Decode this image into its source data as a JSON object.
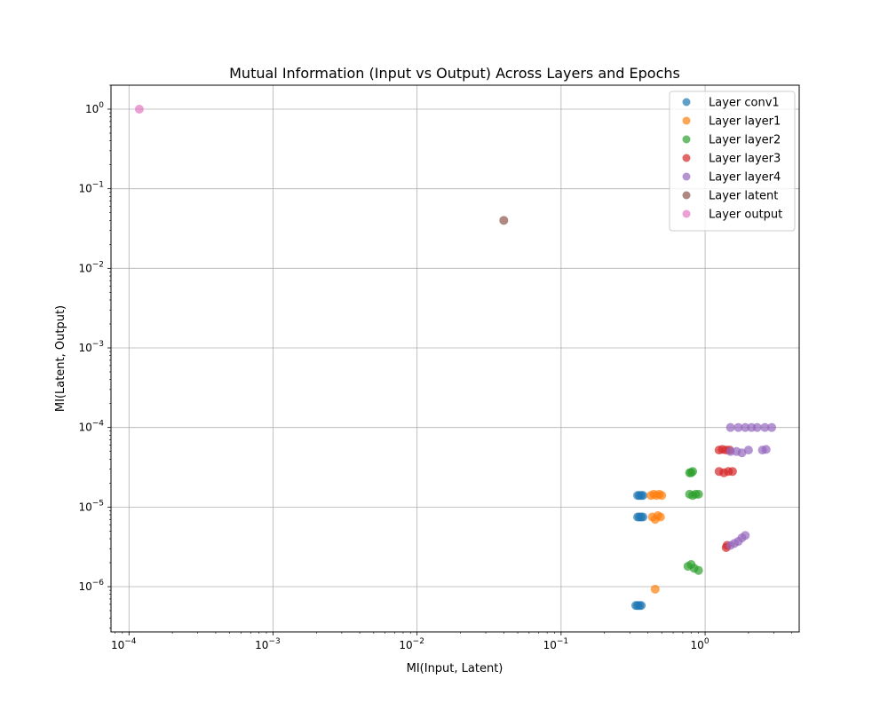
{
  "chart_data": {
    "type": "scatter",
    "title": "Mutual Information (Input vs Output) Across Layers and Epochs",
    "xlabel": "MI(Input, Latent)",
    "ylabel": "MI(Latent, Output)",
    "xscale": "log",
    "yscale": "log",
    "xlim": [
      7.5e-05,
      4.5
    ],
    "ylim": [
      2.7e-07,
      2.0
    ],
    "grid": true,
    "legend_position": "top-right",
    "xticks": [
      {
        "value": 0.0001,
        "label": "10",
        "exp": "−4"
      },
      {
        "value": 0.001,
        "label": "10",
        "exp": "−3"
      },
      {
        "value": 0.01,
        "label": "10",
        "exp": "−2"
      },
      {
        "value": 0.1,
        "label": "10",
        "exp": "−1"
      },
      {
        "value": 1,
        "label": "10",
        "exp": "0"
      }
    ],
    "yticks": [
      {
        "value": 1e-06,
        "label": "10",
        "exp": "−6"
      },
      {
        "value": 1e-05,
        "label": "10",
        "exp": "−5"
      },
      {
        "value": 0.0001,
        "label": "10",
        "exp": "−4"
      },
      {
        "value": 0.001,
        "label": "10",
        "exp": "−3"
      },
      {
        "value": 0.01,
        "label": "10",
        "exp": "−2"
      },
      {
        "value": 0.1,
        "label": "10",
        "exp": "−1"
      },
      {
        "value": 1,
        "label": "10",
        "exp": "0"
      }
    ],
    "series": [
      {
        "name": "Layer conv1",
        "color": "#1f77b4",
        "points": [
          [
            0.34,
            1.4e-05
          ],
          [
            0.35,
            1.4e-05
          ],
          [
            0.36,
            1.4e-05
          ],
          [
            0.37,
            1.4e-05
          ],
          [
            0.34,
            7.5e-06
          ],
          [
            0.35,
            7.5e-06
          ],
          [
            0.36,
            7.5e-06
          ],
          [
            0.37,
            7.5e-06
          ],
          [
            0.33,
            5.8e-07
          ],
          [
            0.34,
            5.8e-07
          ],
          [
            0.35,
            5.8e-07
          ],
          [
            0.36,
            5.8e-07
          ]
        ]
      },
      {
        "name": "Layer layer1",
        "color": "#ff7f0e",
        "points": [
          [
            0.42,
            1.4e-05
          ],
          [
            0.44,
            1.45e-05
          ],
          [
            0.46,
            1.4e-05
          ],
          [
            0.48,
            1.45e-05
          ],
          [
            0.5,
            1.4e-05
          ],
          [
            0.43,
            7.5e-06
          ],
          [
            0.45,
            7e-06
          ],
          [
            0.47,
            7.8e-06
          ],
          [
            0.49,
            7.5e-06
          ],
          [
            0.45,
            9.3e-07
          ]
        ]
      },
      {
        "name": "Layer layer2",
        "color": "#2ca02c",
        "points": [
          [
            0.78,
            2.7e-05
          ],
          [
            0.8,
            2.7e-05
          ],
          [
            0.82,
            2.8e-05
          ],
          [
            0.78,
            1.45e-05
          ],
          [
            0.82,
            1.4e-05
          ],
          [
            0.86,
            1.45e-05
          ],
          [
            0.9,
            1.45e-05
          ],
          [
            0.76,
            1.8e-06
          ],
          [
            0.8,
            1.9e-06
          ],
          [
            0.84,
            1.7e-06
          ],
          [
            0.9,
            1.6e-06
          ]
        ]
      },
      {
        "name": "Layer layer3",
        "color": "#d62728",
        "points": [
          [
            1.25,
            5.2e-05
          ],
          [
            1.32,
            5.3e-05
          ],
          [
            1.4,
            5.2e-05
          ],
          [
            1.48,
            5.2e-05
          ],
          [
            1.25,
            2.8e-05
          ],
          [
            1.35,
            2.7e-05
          ],
          [
            1.45,
            2.8e-05
          ],
          [
            1.55,
            2.8e-05
          ],
          [
            1.4,
            3.1e-06
          ],
          [
            1.42,
            3.3e-06
          ]
        ]
      },
      {
        "name": "Layer layer4",
        "color": "#9467bd",
        "points": [
          [
            1.5,
            0.0001
          ],
          [
            1.7,
            0.0001
          ],
          [
            1.9,
            0.0001
          ],
          [
            2.1,
            0.0001
          ],
          [
            2.3,
            0.0001
          ],
          [
            2.6,
            0.0001
          ],
          [
            2.9,
            0.0001
          ],
          [
            1.5,
            5e-05
          ],
          [
            1.65,
            5e-05
          ],
          [
            1.8,
            4.8e-05
          ],
          [
            2.0,
            5.2e-05
          ],
          [
            2.5,
            5.2e-05
          ],
          [
            2.65,
            5.3e-05
          ],
          [
            1.5,
            3.3e-06
          ],
          [
            1.6,
            3.5e-06
          ],
          [
            1.7,
            3.7e-06
          ],
          [
            1.8,
            4.1e-06
          ],
          [
            1.9,
            4.4e-06
          ]
        ]
      },
      {
        "name": "Layer latent",
        "color": "#8c564b",
        "points": [
          [
            0.04,
            0.04
          ]
        ]
      },
      {
        "name": "Layer output",
        "color": "#e377c2",
        "points": [
          [
            0.000118,
            1.0
          ]
        ]
      }
    ]
  }
}
